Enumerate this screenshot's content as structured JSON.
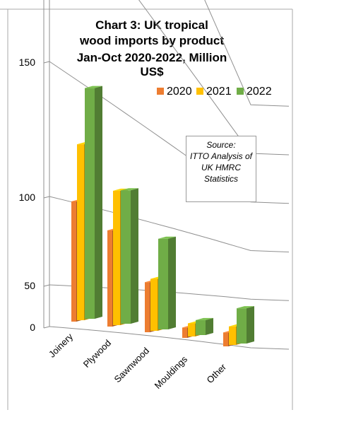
{
  "chart_data": {
    "type": "bar",
    "title_lines": [
      "Chart 3: UK tropical",
      "wood imports by product",
      "Jan-Oct 2020-2022, Million US$"
    ],
    "categories": [
      "Joinery",
      "Plywood",
      "Sawnwood",
      "Mouldings",
      "Other"
    ],
    "series": [
      {
        "name": "2020",
        "color": "#ED7D31",
        "values": [
          125,
          101,
          53,
          11,
          15
        ]
      },
      {
        "name": "2021",
        "color": "#FFC000",
        "values": [
          183,
          141,
          55,
          14,
          20
        ]
      },
      {
        "name": "2022",
        "color": "#70AD47",
        "values": [
          240,
          140,
          96,
          16,
          38
        ]
      }
    ],
    "yticks": [
      "0",
      "50",
      "100",
      "150",
      "200",
      "250"
    ],
    "ylim": [
      0,
      250
    ],
    "legend_position": "top-right",
    "grid": true,
    "source_lines": [
      "Source:",
      "ITTO Analysis of",
      "UK HMRC",
      "Statistics"
    ]
  }
}
